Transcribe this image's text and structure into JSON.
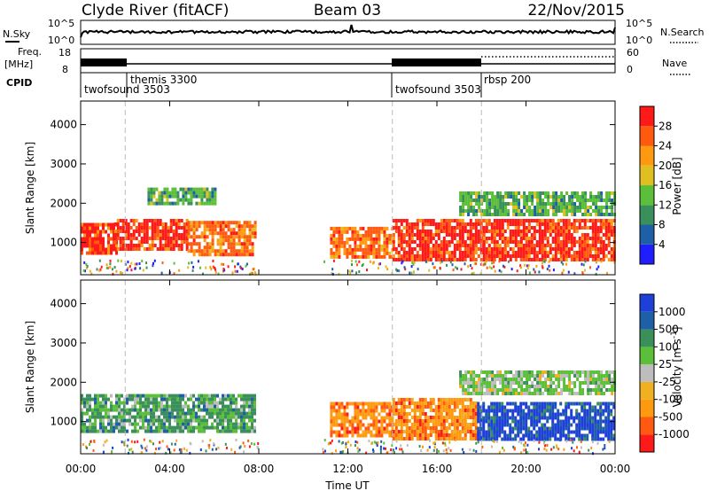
{
  "header": {
    "station": "Clyde River (fitACF)",
    "beam": "Beam 03",
    "date": "22/Nov/2015"
  },
  "nsky_panel": {
    "left_label": "N.Sky",
    "right_label": "N.Search",
    "left_ticks": [
      "10^5",
      "10^0"
    ],
    "right_ticks": [
      "10^5",
      "10^0"
    ]
  },
  "freq_panel": {
    "left_label_1": "Freq.",
    "left_label_2": "[MHz]",
    "right_label": "Nave",
    "left_ticks": [
      "18",
      "8"
    ],
    "right_ticks": [
      "60",
      "0"
    ],
    "cpid_label": "CPID",
    "modes": [
      {
        "name": "twofsound 3503",
        "start_hour": 0.0
      },
      {
        "name": "themis 3300",
        "start_hour": 2.0
      },
      {
        "name": "twofsound 3503",
        "start_hour": 14.0
      },
      {
        "name": "rbsp 200",
        "start_hour": 18.0
      }
    ]
  },
  "colors": {
    "power_scale": [
      "#1e1eff",
      "#1f5fa8",
      "#3a8f5a",
      "#5cbf3a",
      "#e0c020",
      "#ff9a10",
      "#ff5a10",
      "#ff1a1a"
    ],
    "velocity_scale": [
      "#ff1a1a",
      "#ff5a10",
      "#ff9a10",
      "#f0b020",
      "#bdbdbd",
      "#5cbf3a",
      "#3a8f5a",
      "#1f5fa8",
      "#1e3fd8"
    ]
  },
  "power_colorbar": {
    "label": "Power [dB]",
    "ticks": [
      "28",
      "24",
      "20",
      "16",
      "12",
      "8",
      "4"
    ]
  },
  "velocity_colorbar": {
    "label": "Velocity",
    "unit_open": "[m s",
    "unit_exp": "-1",
    "unit_close": "]",
    "ticks": [
      "1000",
      "500",
      "100",
      "25",
      "-25",
      "-100",
      "-500",
      "-1000"
    ]
  },
  "chart_data": {
    "type": "heatmap",
    "xlabel": "Time UT",
    "ylabel": "Slant Range [km]",
    "x_ticks": [
      "00:00",
      "04:00",
      "08:00",
      "12:00",
      "16:00",
      "20:00",
      "00:00"
    ],
    "y_ticks": [
      "1000",
      "2000",
      "3000",
      "4000"
    ],
    "xlim_hours": [
      0,
      24
    ],
    "ylim_km": [
      180,
      4600
    ],
    "mode_change_hours": [
      2,
      14,
      18
    ],
    "power_regions": [
      {
        "t0": 0.0,
        "t1": 1.6,
        "r0": 750,
        "r1": 1500,
        "level": 7
      },
      {
        "t0": 1.5,
        "t1": 4.8,
        "r0": 850,
        "r1": 1600,
        "level": 7
      },
      {
        "t0": 4.8,
        "t1": 7.8,
        "r0": 700,
        "r1": 1550,
        "level": 6
      },
      {
        "t0": 11.2,
        "t1": 14.0,
        "r0": 650,
        "r1": 1400,
        "level": 6
      },
      {
        "t0": 14.0,
        "t1": 24.0,
        "r0": 550,
        "r1": 1600,
        "level": 7
      },
      {
        "t0": 3.0,
        "t1": 6.0,
        "r0": 2000,
        "r1": 2400,
        "level": 3
      },
      {
        "t0": 17.0,
        "t1": 24.0,
        "r0": 1700,
        "r1": 2300,
        "level": 3
      }
    ],
    "velocity_regions": [
      {
        "t0": 0.0,
        "t1": 7.8,
        "r0": 750,
        "r1": 1700,
        "level": 6
      },
      {
        "t0": 11.2,
        "t1": 14.0,
        "r0": 650,
        "r1": 1500,
        "level": 2
      },
      {
        "t0": 14.0,
        "t1": 17.8,
        "r0": 600,
        "r1": 1600,
        "level": 2
      },
      {
        "t0": 17.8,
        "t1": 24.0,
        "r0": 550,
        "r1": 1500,
        "level": 8
      },
      {
        "t0": 17.0,
        "t1": 24.0,
        "r0": 1700,
        "r1": 2300,
        "level": 5
      }
    ]
  }
}
